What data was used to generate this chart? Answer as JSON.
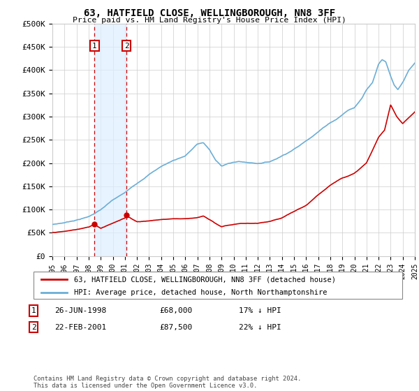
{
  "title": "63, HATFIELD CLOSE, WELLINGBOROUGH, NN8 3FF",
  "subtitle": "Price paid vs. HM Land Registry's House Price Index (HPI)",
  "legend_line1": "63, HATFIELD CLOSE, WELLINGBOROUGH, NN8 3FF (detached house)",
  "legend_line2": "HPI: Average price, detached house, North Northamptonshire",
  "footer": "Contains HM Land Registry data © Crown copyright and database right 2024.\nThis data is licensed under the Open Government Licence v3.0.",
  "sale1_date": "26-JUN-1998",
  "sale1_price": "£68,000",
  "sale1_hpi": "17% ↓ HPI",
  "sale1_year": 1998.49,
  "sale1_value": 68000,
  "sale2_date": "22-FEB-2001",
  "sale2_price": "£87,500",
  "sale2_hpi": "22% ↓ HPI",
  "sale2_year": 2001.13,
  "sale2_value": 87500,
  "hpi_color": "#6baed6",
  "price_color": "#cc0000",
  "vline_color": "#cc0000",
  "shade_color": "#ddeeff",
  "ylim": [
    0,
    500000
  ],
  "xlim_start": 1995,
  "xlim_end": 2025,
  "yticks": [
    0,
    50000,
    100000,
    150000,
    200000,
    250000,
    300000,
    350000,
    400000,
    450000,
    500000
  ],
  "ytick_labels": [
    "£0",
    "£50K",
    "£100K",
    "£150K",
    "£200K",
    "£250K",
    "£300K",
    "£350K",
    "£400K",
    "£450K",
    "£500K"
  ],
  "xticks": [
    1995,
    1996,
    1997,
    1998,
    1999,
    2000,
    2001,
    2002,
    2003,
    2004,
    2005,
    2006,
    2007,
    2008,
    2009,
    2010,
    2011,
    2012,
    2013,
    2014,
    2015,
    2016,
    2017,
    2018,
    2019,
    2020,
    2021,
    2022,
    2023,
    2024,
    2025
  ],
  "background_color": "#ffffff",
  "grid_color": "#cccccc",
  "hpi_anchors_x": [
    1995,
    1996,
    1997,
    1998,
    1999,
    2000,
    2001,
    2002,
    2003,
    2004,
    2005,
    2006,
    2007,
    2007.5,
    2008,
    2008.5,
    2009,
    2009.5,
    2010,
    2010.5,
    2011,
    2011.5,
    2012,
    2012.5,
    2013,
    2013.5,
    2014,
    2014.5,
    2015,
    2015.5,
    2016,
    2016.5,
    2017,
    2017.5,
    2018,
    2018.5,
    2019,
    2019.5,
    2020,
    2020.3,
    2020.6,
    2021,
    2021.5,
    2022,
    2022.3,
    2022.6,
    2023,
    2023.3,
    2023.6,
    2024,
    2024.5,
    2025
  ],
  "hpi_anchors_y": [
    68000,
    72000,
    78000,
    85000,
    100000,
    120000,
    135000,
    155000,
    175000,
    192000,
    205000,
    215000,
    240000,
    243000,
    228000,
    205000,
    192000,
    198000,
    200000,
    202000,
    200000,
    199000,
    198000,
    200000,
    202000,
    208000,
    215000,
    222000,
    230000,
    238000,
    248000,
    258000,
    268000,
    278000,
    288000,
    295000,
    305000,
    315000,
    320000,
    330000,
    340000,
    360000,
    375000,
    415000,
    425000,
    420000,
    390000,
    370000,
    360000,
    375000,
    400000,
    415000
  ],
  "price_anchors_x": [
    1995,
    1996,
    1997,
    1998,
    1998.49,
    1999,
    2000,
    2001,
    2001.13,
    2002,
    2003,
    2004,
    2005,
    2006,
    2007,
    2007.5,
    2008,
    2008.5,
    2009,
    2009.5,
    2010,
    2010.5,
    2011,
    2012,
    2013,
    2014,
    2015,
    2016,
    2017,
    2018,
    2019,
    2020,
    2021,
    2022,
    2022.5,
    2023,
    2023.5,
    2024,
    2025
  ],
  "price_anchors_y": [
    51000,
    53000,
    57000,
    62000,
    68000,
    60000,
    72000,
    82000,
    87500,
    75000,
    77000,
    80000,
    82000,
    82000,
    85000,
    88000,
    80000,
    72000,
    65000,
    68000,
    70000,
    72000,
    72000,
    72000,
    75000,
    82000,
    95000,
    108000,
    130000,
    152000,
    168000,
    178000,
    200000,
    255000,
    270000,
    325000,
    300000,
    285000,
    310000
  ]
}
